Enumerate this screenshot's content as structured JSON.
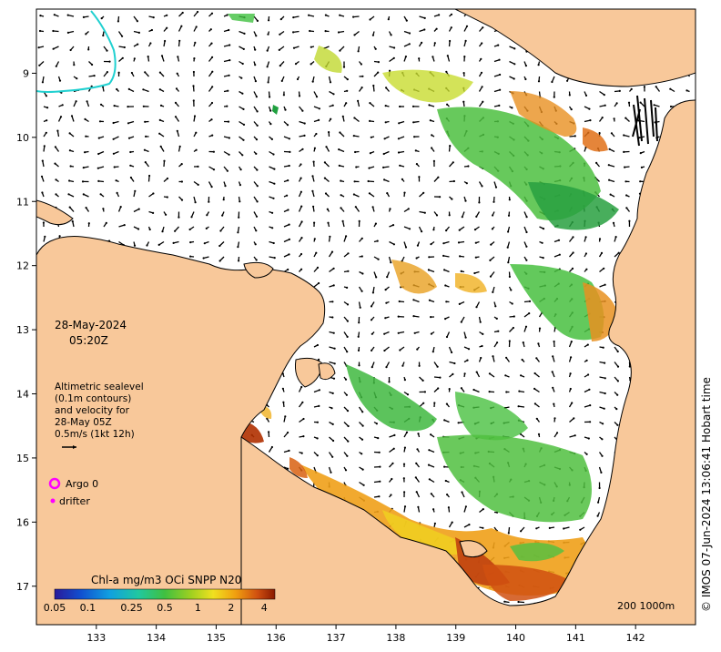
{
  "map": {
    "date_label": "28-May-2024",
    "time_label": "05:20Z",
    "legend_lines": [
      "Altimetric sealevel",
      "(0.1m contours)",
      "and velocity for",
      "28-May 05Z",
      "0.5m/s (1kt 12h)"
    ],
    "argo_label": "Argo 0",
    "drifter_label": "drifter",
    "colorbar_title": "Chl-a mg/m3 OCi SNPP N20",
    "colorbar_ticks": [
      "0.05",
      "0.1",
      "0.25",
      "0.5",
      "1",
      "2",
      "4"
    ],
    "colorbar_tick_values": [
      0.05,
      0.1,
      0.25,
      0.5,
      1,
      2,
      4
    ],
    "colorbar_range": [
      0.05,
      5
    ],
    "scale_label": "200  1000m",
    "copyright": "© IMOS 07-Jun-2024 13:06:41 Hobart time",
    "x_ticks": [
      "133",
      "134",
      "135",
      "136",
      "137",
      "138",
      "139",
      "140",
      "141",
      "142"
    ],
    "y_ticks": [
      "9",
      "10",
      "11",
      "12",
      "13",
      "14",
      "15",
      "16",
      "17"
    ],
    "x_range": [
      132.0,
      143.0
    ],
    "y_range": [
      -8.0,
      -17.6
    ],
    "colors": {
      "land": "#f8c89a",
      "ocean": "#ffffff",
      "argo": "#ff00ff",
      "depth_contour": "#20d0d0",
      "chl_low": "#2ca02c",
      "chl_high": "#b03000"
    }
  }
}
